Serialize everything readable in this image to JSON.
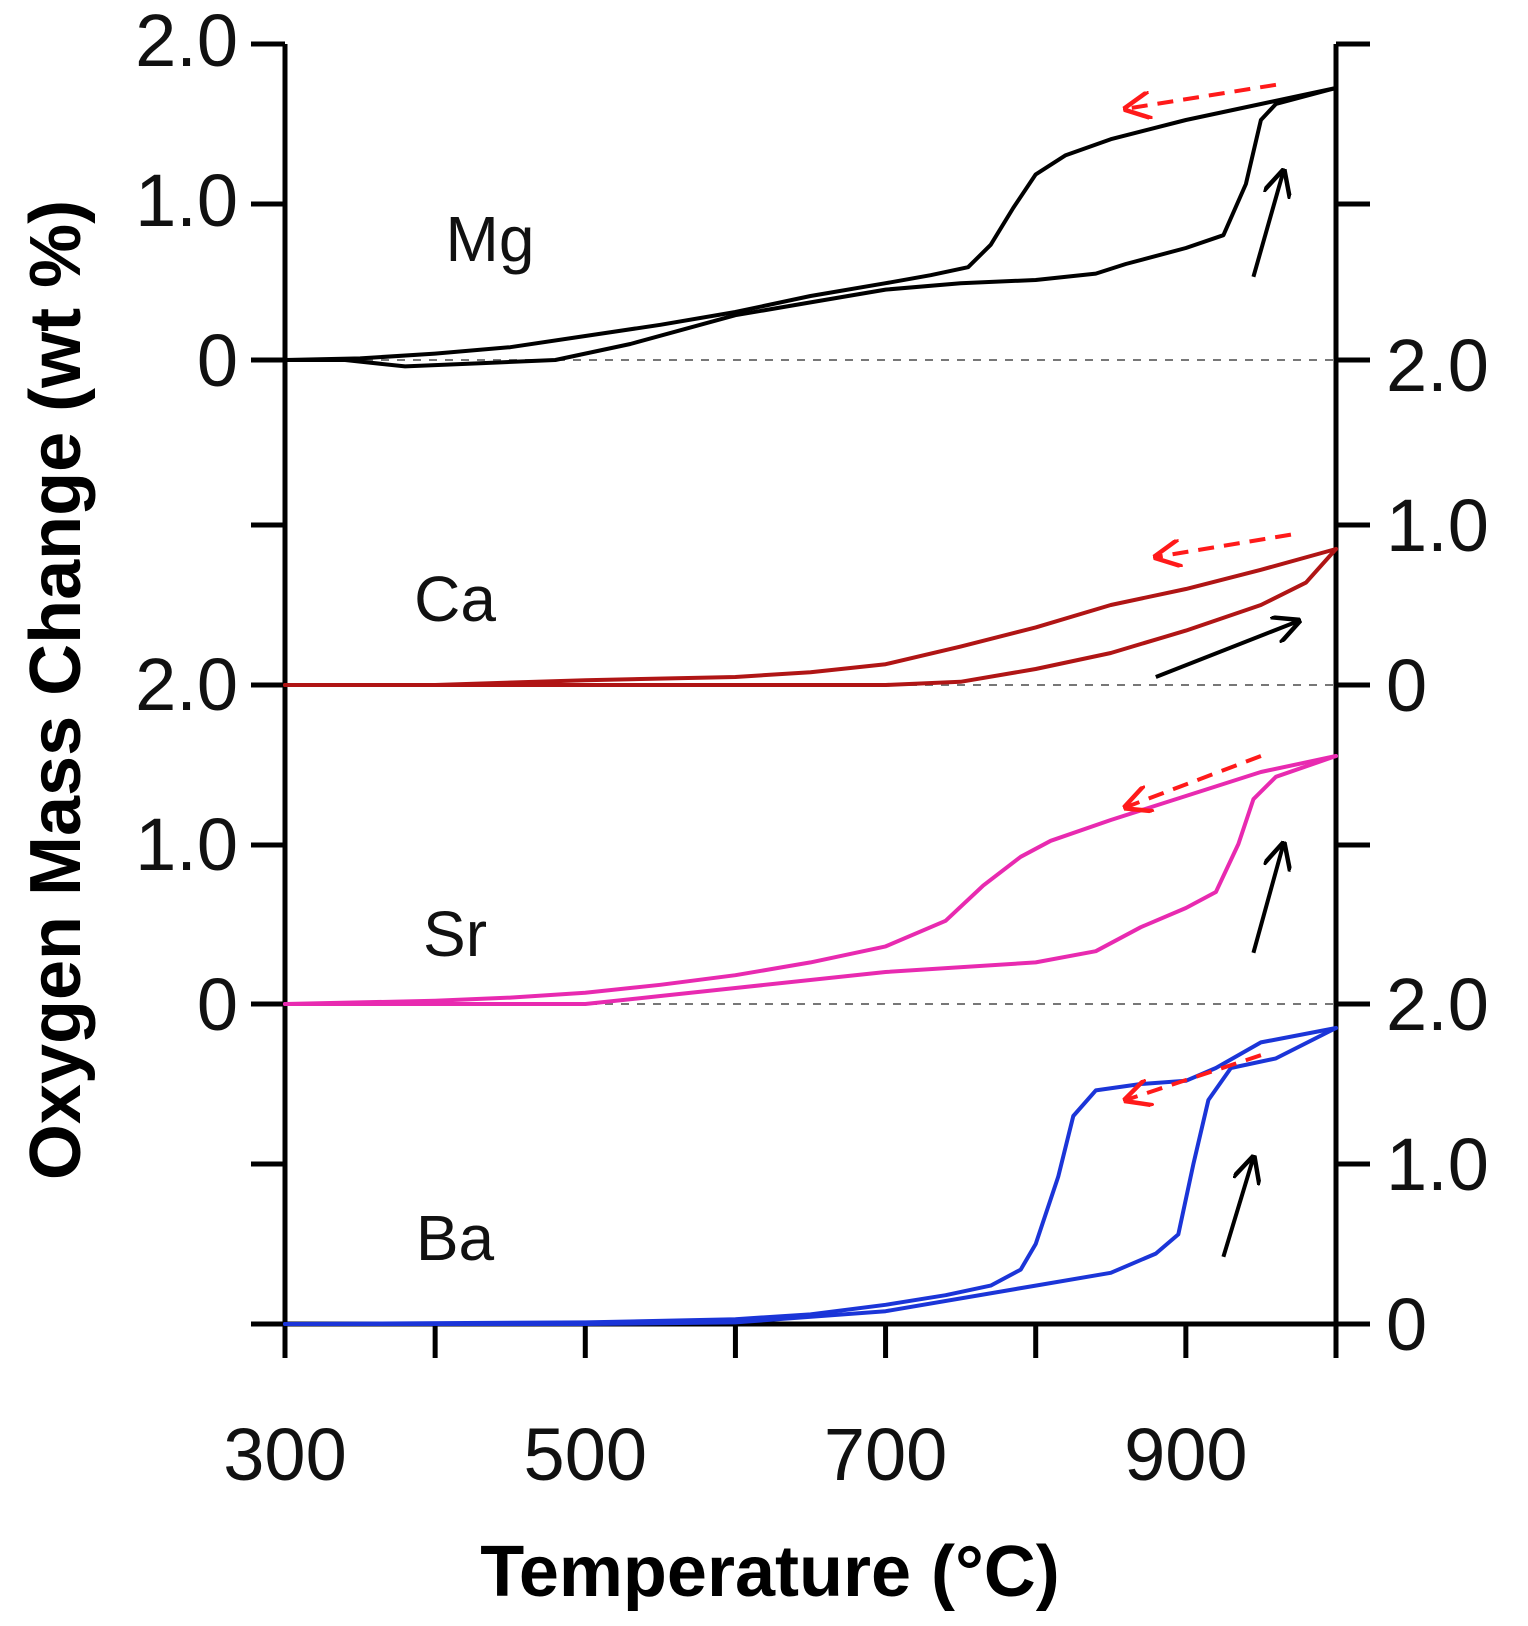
{
  "chart_data": {
    "type": "line",
    "title": "",
    "xlabel": "Temperature (°C)",
    "ylabel": "Oxygen Mass Change (wt %)",
    "xlim": [
      300,
      1000
    ],
    "x_ticks": [
      300,
      400,
      500,
      600,
      700,
      800,
      900,
      1000
    ],
    "x_tick_labels": [
      "300",
      "500",
      "700",
      "900"
    ],
    "x_tick_label_values": [
      300,
      500,
      700,
      900
    ],
    "ylim_per_panel": [
      0,
      2.0
    ],
    "grid": false,
    "left_axis_labels": [
      {
        "text": "2.0",
        "panel": "Mg",
        "value": 2.0
      },
      {
        "text": "1.0",
        "panel": "Mg",
        "value": 1.0
      },
      {
        "text": "0",
        "panel": "Mg",
        "value": 0
      },
      {
        "text": "2.0",
        "panel": "Sr",
        "value": 2.0
      },
      {
        "text": "1.0",
        "panel": "Sr",
        "value": 1.0
      },
      {
        "text": "0",
        "panel": "Sr",
        "value": 0
      }
    ],
    "right_axis_labels": [
      {
        "text": "2.0",
        "panel": "Ca",
        "value": 2.0
      },
      {
        "text": "1.0",
        "panel": "Ca",
        "value": 1.0
      },
      {
        "text": "0",
        "panel": "Ca",
        "value": 0
      },
      {
        "text": "2.0",
        "panel": "Ba",
        "value": 2.0
      },
      {
        "text": "1.0",
        "panel": "Ba",
        "value": 1.0
      },
      {
        "text": "0",
        "panel": "Ba",
        "value": 0
      }
    ],
    "series": [
      {
        "name": "Mg",
        "color": "#000000",
        "heating": [
          [
            300,
            0
          ],
          [
            340,
            0
          ],
          [
            380,
            -0.04
          ],
          [
            430,
            -0.02
          ],
          [
            480,
            0
          ],
          [
            530,
            0.1
          ],
          [
            600,
            0.28
          ],
          [
            650,
            0.36
          ],
          [
            700,
            0.44
          ],
          [
            750,
            0.48
          ],
          [
            800,
            0.5
          ],
          [
            840,
            0.54
          ],
          [
            860,
            0.6
          ],
          [
            900,
            0.7
          ],
          [
            925,
            0.78
          ],
          [
            940,
            1.1
          ],
          [
            950,
            1.5
          ],
          [
            960,
            1.6
          ],
          [
            1000,
            1.7
          ]
        ],
        "cooling": [
          [
            1000,
            1.7
          ],
          [
            950,
            1.6
          ],
          [
            900,
            1.5
          ],
          [
            850,
            1.38
          ],
          [
            820,
            1.28
          ],
          [
            800,
            1.16
          ],
          [
            785,
            0.95
          ],
          [
            770,
            0.72
          ],
          [
            755,
            0.58
          ],
          [
            730,
            0.53
          ],
          [
            700,
            0.48
          ],
          [
            650,
            0.4
          ],
          [
            600,
            0.3
          ],
          [
            550,
            0.22
          ],
          [
            500,
            0.15
          ],
          [
            450,
            0.08
          ],
          [
            400,
            0.04
          ],
          [
            350,
            0.01
          ],
          [
            300,
            0
          ]
        ]
      },
      {
        "name": "Ca",
        "color": "#b01515",
        "heating": [
          [
            300,
            0
          ],
          [
            500,
            0
          ],
          [
            600,
            0
          ],
          [
            650,
            0
          ],
          [
            700,
            0
          ],
          [
            750,
            0.02
          ],
          [
            800,
            0.1
          ],
          [
            850,
            0.2
          ],
          [
            900,
            0.34
          ],
          [
            950,
            0.5
          ],
          [
            980,
            0.64
          ],
          [
            1000,
            0.85
          ]
        ],
        "cooling": [
          [
            1000,
            0.85
          ],
          [
            950,
            0.72
          ],
          [
            900,
            0.6
          ],
          [
            850,
            0.5
          ],
          [
            800,
            0.36
          ],
          [
            750,
            0.24
          ],
          [
            700,
            0.13
          ],
          [
            650,
            0.08
          ],
          [
            600,
            0.05
          ],
          [
            500,
            0.03
          ],
          [
            400,
            0
          ],
          [
            300,
            0
          ]
        ]
      },
      {
        "name": "Sr",
        "color": "#e82ab0",
        "heating": [
          [
            300,
            0
          ],
          [
            400,
            0
          ],
          [
            500,
            0
          ],
          [
            550,
            0.05
          ],
          [
            600,
            0.1
          ],
          [
            700,
            0.2
          ],
          [
            800,
            0.26
          ],
          [
            840,
            0.33
          ],
          [
            870,
            0.48
          ],
          [
            900,
            0.6
          ],
          [
            920,
            0.7
          ],
          [
            935,
            1.0
          ],
          [
            945,
            1.28
          ],
          [
            960,
            1.42
          ],
          [
            1000,
            1.55
          ]
        ],
        "cooling": [
          [
            1000,
            1.55
          ],
          [
            950,
            1.45
          ],
          [
            900,
            1.3
          ],
          [
            850,
            1.15
          ],
          [
            810,
            1.02
          ],
          [
            790,
            0.92
          ],
          [
            765,
            0.74
          ],
          [
            740,
            0.52
          ],
          [
            700,
            0.36
          ],
          [
            650,
            0.26
          ],
          [
            600,
            0.18
          ],
          [
            550,
            0.12
          ],
          [
            500,
            0.07
          ],
          [
            450,
            0.04
          ],
          [
            400,
            0.02
          ],
          [
            300,
            0
          ]
        ]
      },
      {
        "name": "Ba",
        "color": "#1b35d8",
        "heating": [
          [
            300,
            0
          ],
          [
            500,
            0
          ],
          [
            600,
            0.01
          ],
          [
            700,
            0.08
          ],
          [
            800,
            0.24
          ],
          [
            850,
            0.32
          ],
          [
            880,
            0.44
          ],
          [
            895,
            0.56
          ],
          [
            905,
            1.0
          ],
          [
            915,
            1.4
          ],
          [
            930,
            1.6
          ],
          [
            960,
            1.66
          ],
          [
            1000,
            1.85
          ]
        ],
        "cooling": [
          [
            1000,
            1.85
          ],
          [
            950,
            1.76
          ],
          [
            920,
            1.6
          ],
          [
            900,
            1.52
          ],
          [
            870,
            1.5
          ],
          [
            840,
            1.46
          ],
          [
            825,
            1.3
          ],
          [
            815,
            0.92
          ],
          [
            800,
            0.5
          ],
          [
            790,
            0.34
          ],
          [
            770,
            0.24
          ],
          [
            740,
            0.18
          ],
          [
            700,
            0.12
          ],
          [
            650,
            0.06
          ],
          [
            600,
            0.03
          ],
          [
            500,
            0.01
          ],
          [
            300,
            0
          ]
        ]
      }
    ],
    "annotations": [
      {
        "text": "Mg",
        "panel": "Mg"
      },
      {
        "text": "Ca",
        "panel": "Ca"
      },
      {
        "text": "Sr",
        "panel": "Sr"
      },
      {
        "text": "Ba",
        "panel": "Ba"
      },
      {
        "type": "arrow",
        "style": "dashed",
        "color": "#ff1a1a",
        "meaning": "cooling direction",
        "panels": [
          "Mg",
          "Ca",
          "Sr",
          "Ba"
        ]
      },
      {
        "type": "arrow",
        "style": "solid",
        "color": "#000000",
        "meaning": "heating direction",
        "panels": [
          "Mg",
          "Ca",
          "Sr",
          "Ba"
        ]
      }
    ]
  }
}
